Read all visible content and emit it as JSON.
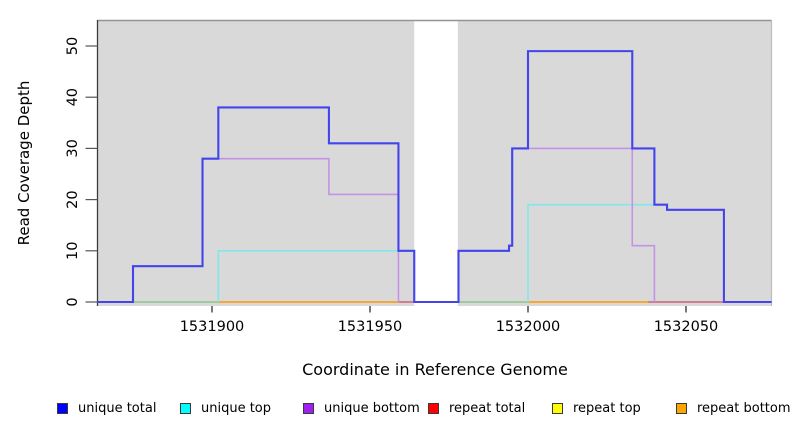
{
  "chart_data": {
    "type": "line",
    "subtype": "step-coverage-plot",
    "title": "",
    "xlabel": "Coordinate in Reference Genome",
    "ylabel": "Read Coverage Depth",
    "x_ticks": [
      1531900,
      1531950,
      1532000,
      1532050
    ],
    "y_ticks": [
      0,
      10,
      20,
      30,
      40,
      50
    ],
    "xlim": [
      1531863.8,
      1532077.1
    ],
    "ylim": [
      0,
      55
    ],
    "grid": false,
    "panel_background": "#d9d9d9",
    "masked_region": {
      "x1": 1531964,
      "x2": 1531977.8,
      "color": "#ffffff"
    },
    "legend_position": "bottom",
    "series": [
      {
        "name": "unique total",
        "color": "#4444ec",
        "width": 2.1,
        "render": "full",
        "x": [
          1531863.8,
          1531875,
          1531897,
          1531902,
          1531937,
          1531959,
          1531964,
          1531978,
          1531994,
          1531995,
          1532000,
          1532033,
          1532040,
          1532044,
          1532062
        ],
        "v": [
          0,
          7,
          28,
          38,
          31,
          10,
          0,
          10,
          11,
          30,
          49,
          30,
          19,
          18,
          0
        ],
        "xend": 1532077.1
      },
      {
        "name": "unique top",
        "color": "#80e8ec",
        "width": 1.6,
        "render": "skip-zero",
        "x": [
          1531875,
          1531902,
          1531964,
          1532000,
          1532044,
          1532062
        ],
        "v": [
          0,
          10,
          0,
          19,
          18,
          0
        ],
        "xend": 1532077.1
      },
      {
        "name": "unique bottom",
        "color": "#c493e6",
        "width": 1.6,
        "render": "skip-zero",
        "x": [
          1531863.8,
          1531875,
          1531897,
          1531937,
          1531959,
          1531978,
          1531994,
          1531995,
          1532033,
          1532040
        ],
        "v": [
          0,
          7,
          28,
          21,
          0,
          10,
          11,
          30,
          11,
          0
        ],
        "xend": 1532077.1
      },
      {
        "name": "repeat total",
        "color": "#d0617a",
        "width": 1.6,
        "render": "skip-zero",
        "x": [
          1531902
        ],
        "v": [
          0
        ],
        "xend": 1532062
      },
      {
        "name": "repeat top",
        "color": "#ffff00",
        "width": 1.6,
        "render": "skip-zero",
        "x": [
          1531902
        ],
        "v": [
          0
        ],
        "xend": 1532062
      },
      {
        "name": "repeat bottom",
        "color": "#ff9800",
        "width": 1.6,
        "render": "skip-zero",
        "x": [
          1531902
        ],
        "v": [
          0
        ],
        "xend": 1532062
      }
    ],
    "baseline_segments": [
      {
        "x1": 1531875,
        "x2": 1531902,
        "color": "#8cc88c"
      },
      {
        "x1": 1531902,
        "x2": 1531959,
        "color": "#ff9800"
      },
      {
        "x1": 1531959,
        "x2": 1531964,
        "color": "#d0617a"
      },
      {
        "x1": 1531978,
        "x2": 1532000,
        "color": "#8cc88c"
      },
      {
        "x1": 1532000,
        "x2": 1532038,
        "color": "#ff9800"
      },
      {
        "x1": 1532038,
        "x2": 1532062,
        "color": "#d0617a"
      }
    ]
  },
  "legend": {
    "items": [
      {
        "label": "unique total",
        "color": "#0000FF"
      },
      {
        "label": "unique top",
        "color": "#00FFFF"
      },
      {
        "label": "unique bottom",
        "color": "#A020F0"
      },
      {
        "label": "repeat total",
        "color": "#FF0000"
      },
      {
        "label": "repeat top",
        "color": "#FFFF00"
      },
      {
        "label": "repeat bottom",
        "color": "#FFA500"
      }
    ]
  }
}
